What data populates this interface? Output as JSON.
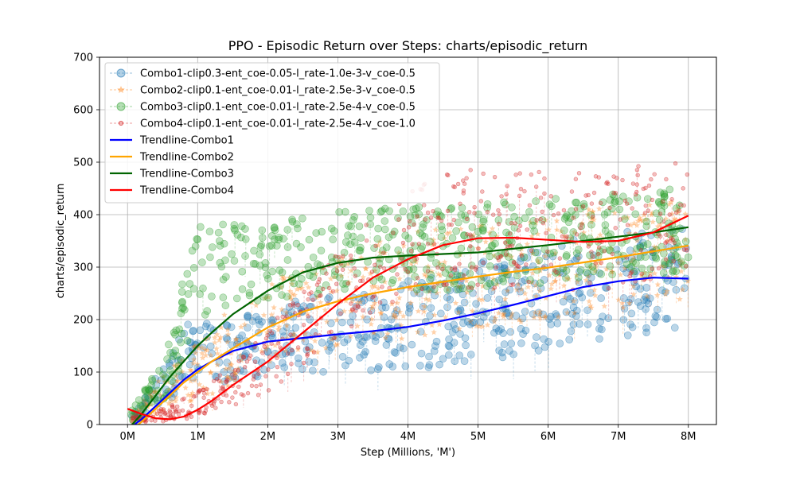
{
  "chart_data": {
    "type": "line",
    "title": "PPO - Episodic Return over Steps: charts/episodic_return",
    "xlabel": "Step (Millions, 'M')",
    "ylabel": "charts/episodic_return",
    "xlim": [
      -0.4,
      8.4
    ],
    "ylim": [
      0,
      700
    ],
    "x_ticks": [
      0,
      1,
      2,
      3,
      4,
      5,
      6,
      7,
      8
    ],
    "x_tick_labels": [
      "0M",
      "1M",
      "2M",
      "3M",
      "4M",
      "5M",
      "6M",
      "7M",
      "8M"
    ],
    "y_ticks": [
      0,
      100,
      200,
      300,
      400,
      500,
      600,
      700
    ],
    "y_tick_labels": [
      "0",
      "100",
      "200",
      "300",
      "400",
      "500",
      "600",
      "700"
    ],
    "grid": true,
    "legend_position": "top-left",
    "series": [
      {
        "name": "Combo1-clip0.3-ent_coe-0.05-l_rate-1.0e-3-v_coe-0.5",
        "kind": "scatter",
        "marker": "circle",
        "color": "#1f77b4",
        "x": [
          0.05,
          0.3,
          0.6,
          0.8,
          1.0,
          1.3,
          1.6,
          2.0,
          2.5,
          3.0,
          3.5,
          4.0,
          4.5,
          5.0,
          5.5,
          6.0,
          6.5,
          7.0,
          7.5,
          8.0
        ],
        "y": [
          15,
          40,
          90,
          130,
          150,
          140,
          145,
          160,
          175,
          170,
          180,
          190,
          200,
          215,
          225,
          245,
          255,
          265,
          275,
          280
        ],
        "spread": [
          10,
          25,
          45,
          55,
          60,
          60,
          60,
          65,
          70,
          75,
          80,
          85,
          90,
          95,
          95,
          100,
          100,
          100,
          100,
          100
        ]
      },
      {
        "name": "Combo2-clip0.1-ent_coe-0.01-l_rate-2.5e-3-v_coe-0.5",
        "kind": "scatter",
        "marker": "star",
        "color": "#ff7f0e",
        "x": [
          0.05,
          0.3,
          0.6,
          0.8,
          1.0,
          1.3,
          1.6,
          2.0,
          2.5,
          3.0,
          3.5,
          4.0,
          4.5,
          5.0,
          5.5,
          6.0,
          6.5,
          7.0,
          7.5,
          8.0
        ],
        "y": [
          15,
          35,
          70,
          90,
          110,
          130,
          160,
          190,
          215,
          235,
          250,
          265,
          275,
          285,
          290,
          300,
          310,
          320,
          330,
          340
        ],
        "spread": [
          10,
          25,
          40,
          50,
          60,
          70,
          75,
          80,
          85,
          90,
          95,
          100,
          100,
          100,
          100,
          100,
          100,
          100,
          100,
          100
        ]
      },
      {
        "name": "Combo3-clip0.1-ent_coe-0.01-l_rate-2.5e-4-v_coe-0.5",
        "kind": "scatter",
        "marker": "circle",
        "color": "#2ca02c",
        "x": [
          0.05,
          0.3,
          0.6,
          0.8,
          1.0,
          1.3,
          1.6,
          2.0,
          2.5,
          3.0,
          3.5,
          4.0,
          4.5,
          5.0,
          5.5,
          6.0,
          6.5,
          7.0,
          7.5,
          8.0
        ],
        "y": [
          20,
          50,
          110,
          200,
          280,
          300,
          300,
          300,
          320,
          330,
          335,
          335,
          335,
          340,
          345,
          350,
          355,
          360,
          365,
          375
        ],
        "spread": [
          15,
          30,
          50,
          90,
          100,
          85,
          80,
          75,
          80,
          80,
          80,
          80,
          80,
          80,
          80,
          80,
          80,
          80,
          80,
          80
        ]
      },
      {
        "name": "Combo4-clip0.1-ent_coe-0.01-l_rate-2.5e-4-v_coe-1.0",
        "kind": "scatter",
        "marker": "circle",
        "color": "#d62728",
        "x": [
          0.05,
          0.3,
          0.6,
          0.8,
          1.0,
          1.3,
          1.6,
          2.0,
          2.5,
          3.0,
          3.5,
          4.0,
          4.5,
          5.0,
          5.5,
          6.0,
          6.5,
          7.0,
          7.5,
          8.0
        ],
        "y": [
          10,
          15,
          20,
          30,
          40,
          60,
          80,
          120,
          190,
          250,
          300,
          340,
          370,
          375,
          370,
          365,
          365,
          370,
          385,
          405
        ],
        "spread": [
          8,
          10,
          15,
          20,
          25,
          35,
          45,
          60,
          75,
          85,
          95,
          100,
          110,
          115,
          115,
          115,
          115,
          115,
          115,
          115
        ]
      },
      {
        "name": "Trendline-Combo1",
        "kind": "line",
        "color": "#0000ff",
        "x": [
          0,
          0.2,
          0.4,
          0.6,
          0.8,
          1.0,
          1.2,
          1.5,
          2.0,
          2.5,
          3.0,
          3.5,
          4.0,
          4.5,
          5.0,
          5.5,
          6.0,
          6.5,
          7.0,
          7.5,
          8.0
        ],
        "y": [
          -10,
          10,
          35,
          60,
          85,
          105,
          120,
          140,
          158,
          165,
          172,
          178,
          186,
          198,
          212,
          228,
          245,
          262,
          273,
          280,
          278
        ]
      },
      {
        "name": "Trendline-Combo2",
        "kind": "line",
        "color": "#ffa500",
        "x": [
          0,
          0.2,
          0.4,
          0.6,
          0.8,
          1.0,
          1.2,
          1.5,
          2.0,
          2.5,
          3.0,
          3.5,
          4.0,
          4.5,
          5.0,
          5.5,
          6.0,
          6.5,
          7.0,
          7.5,
          8.0
        ],
        "y": [
          -15,
          5,
          30,
          55,
          80,
          100,
          120,
          145,
          185,
          215,
          235,
          250,
          262,
          272,
          282,
          291,
          299,
          309,
          319,
          330,
          341
        ]
      },
      {
        "name": "Trendline-Combo3",
        "kind": "line",
        "color": "#006400",
        "x": [
          0,
          0.2,
          0.4,
          0.6,
          0.8,
          1.0,
          1.2,
          1.5,
          2.0,
          2.5,
          3.0,
          3.5,
          4.0,
          4.5,
          5.0,
          5.5,
          6.0,
          6.5,
          7.0,
          7.5,
          8.0
        ],
        "y": [
          -10,
          20,
          55,
          90,
          120,
          150,
          175,
          210,
          255,
          290,
          308,
          318,
          322,
          325,
          328,
          335,
          342,
          350,
          358,
          366,
          376
        ]
      },
      {
        "name": "Trendline-Combo4",
        "kind": "line",
        "color": "#ff0000",
        "x": [
          0,
          0.2,
          0.4,
          0.6,
          0.8,
          1.0,
          1.2,
          1.5,
          2.0,
          2.5,
          3.0,
          3.5,
          4.0,
          4.5,
          5.0,
          5.5,
          6.0,
          6.5,
          7.0,
          7.5,
          8.0
        ],
        "y": [
          30,
          20,
          12,
          10,
          15,
          28,
          45,
          75,
          120,
          175,
          230,
          280,
          315,
          342,
          355,
          356,
          352,
          348,
          350,
          366,
          398
        ]
      }
    ]
  }
}
